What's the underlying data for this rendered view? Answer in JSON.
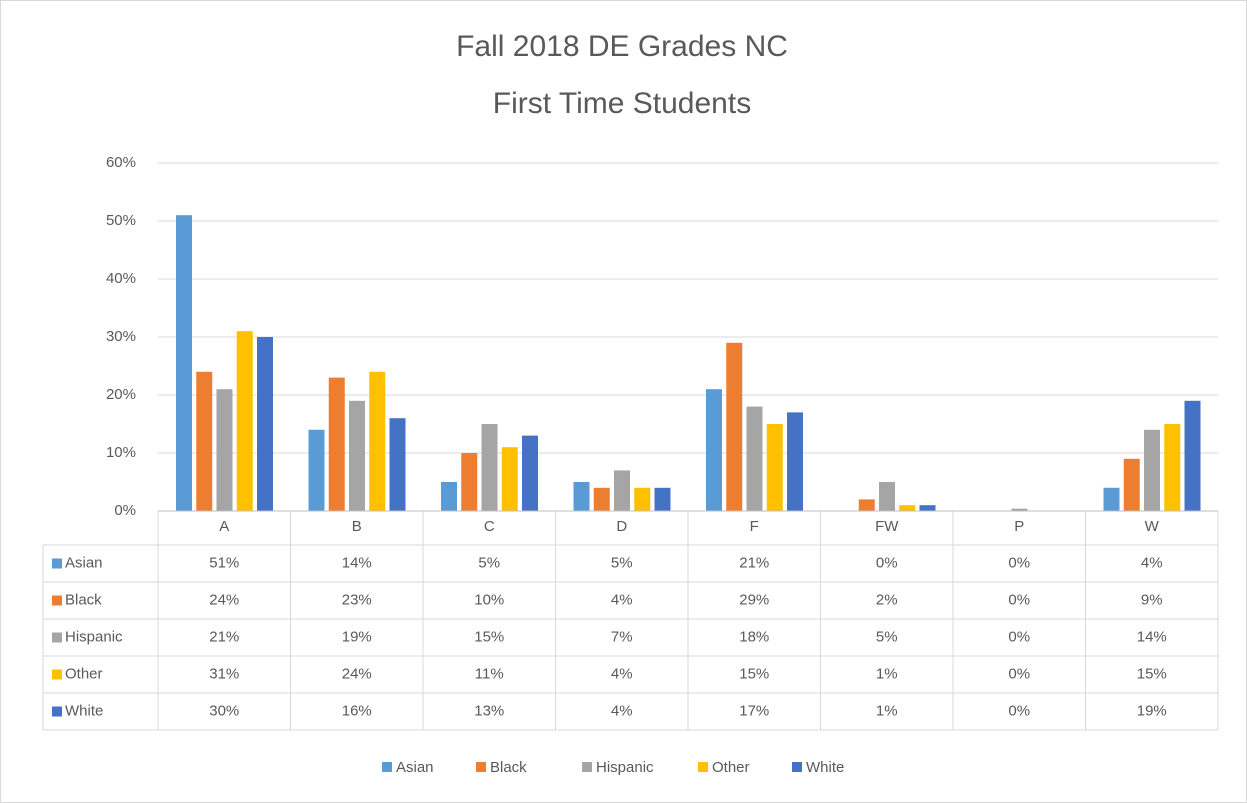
{
  "chart_data": {
    "type": "bar",
    "title": "Fall 2018 DE Grades NC",
    "subtitle": "First Time Students",
    "categories": [
      "A",
      "B",
      "C",
      "D",
      "F",
      "FW",
      "P",
      "W"
    ],
    "series": [
      {
        "name": "Asian",
        "color": "#5b9bd5",
        "values": [
          51,
          14,
          5,
          5,
          21,
          0,
          0,
          4
        ],
        "value_labels": [
          "51%",
          "14%",
          "5%",
          "5%",
          "21%",
          "0%",
          "0%",
          "4%"
        ]
      },
      {
        "name": "Black",
        "color": "#ed7d31",
        "values": [
          24,
          23,
          10,
          4,
          29,
          2,
          0,
          9
        ],
        "value_labels": [
          "24%",
          "23%",
          "10%",
          "4%",
          "29%",
          "2%",
          "0%",
          "9%"
        ]
      },
      {
        "name": "Hispanic",
        "color": "#a5a5a5",
        "values": [
          21,
          19,
          15,
          7,
          18,
          5,
          0.4,
          14
        ],
        "value_labels": [
          "21%",
          "19%",
          "15%",
          "7%",
          "18%",
          "5%",
          "0%",
          "14%"
        ]
      },
      {
        "name": "Other",
        "color": "#ffc000",
        "values": [
          31,
          24,
          11,
          4,
          15,
          1,
          0,
          15
        ],
        "value_labels": [
          "31%",
          "24%",
          "11%",
          "4%",
          "15%",
          "1%",
          "0%",
          "15%"
        ]
      },
      {
        "name": "White",
        "color": "#4472c4",
        "values": [
          30,
          16,
          13,
          4,
          17,
          1,
          0,
          19
        ],
        "value_labels": [
          "30%",
          "16%",
          "13%",
          "4%",
          "17%",
          "1%",
          "0%",
          "19%"
        ]
      }
    ],
    "ylim": [
      0,
      60
    ],
    "yticks": [
      {
        "value": 0,
        "label": "0%"
      },
      {
        "value": 10,
        "label": "10%"
      },
      {
        "value": 20,
        "label": "20%"
      },
      {
        "value": 30,
        "label": "30%"
      },
      {
        "value": 40,
        "label": "40%"
      },
      {
        "value": 50,
        "label": "50%"
      },
      {
        "value": 60,
        "label": "60%"
      }
    ],
    "grid": true,
    "legend": "bottom"
  }
}
